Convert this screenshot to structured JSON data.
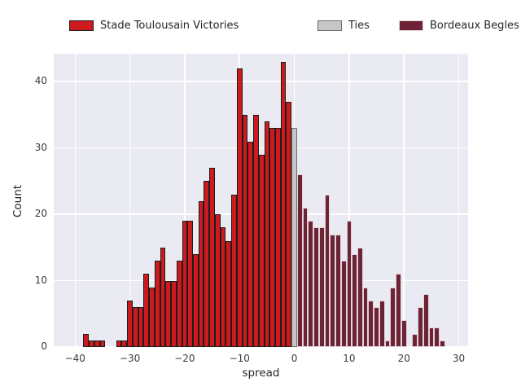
{
  "chart_data": {
    "type": "bar",
    "subtype": "histogram",
    "title": "",
    "xlabel": "spread",
    "ylabel": "Count",
    "xlim": [
      -43.9,
      31.7
    ],
    "ylim": [
      0,
      44.2
    ],
    "xticks": [
      -40,
      -30,
      -20,
      -10,
      0,
      10,
      20,
      30
    ],
    "yticks": [
      0,
      10,
      20,
      30,
      40
    ],
    "grid": "on",
    "legend_position": "top-horizontal",
    "plot_background": "#eaeaf2",
    "gridline_color": "#ffffff",
    "bin_width": 1,
    "series": [
      {
        "name": "Stade Toulousain Victories",
        "color": "#cd1a1f",
        "edge_color": "#1c1c1c",
        "start": -38,
        "values": [
          2,
          1,
          1,
          1,
          0,
          0,
          1,
          1,
          7,
          6,
          6,
          11,
          9,
          13,
          15,
          10,
          10,
          13,
          19,
          19,
          14,
          22,
          25,
          27,
          20,
          18,
          16,
          23,
          42,
          35,
          31,
          35,
          29,
          34,
          33,
          33,
          43,
          37
        ]
      },
      {
        "name": "Ties",
        "color": "#c6c6c6",
        "edge_color": "#6f6f6f",
        "start": 0,
        "values": [
          33
        ]
      },
      {
        "name": "Bordeaux Begles Victories",
        "color": "#6b2335",
        "edge_color": "#e3d4d9",
        "start": 1,
        "values": [
          26,
          21,
          19,
          18,
          18,
          23,
          17,
          17,
          13,
          19,
          14,
          15,
          9,
          7,
          6,
          7,
          1,
          9,
          11,
          4,
          0,
          2,
          6,
          8,
          3,
          3,
          1
        ]
      }
    ]
  }
}
